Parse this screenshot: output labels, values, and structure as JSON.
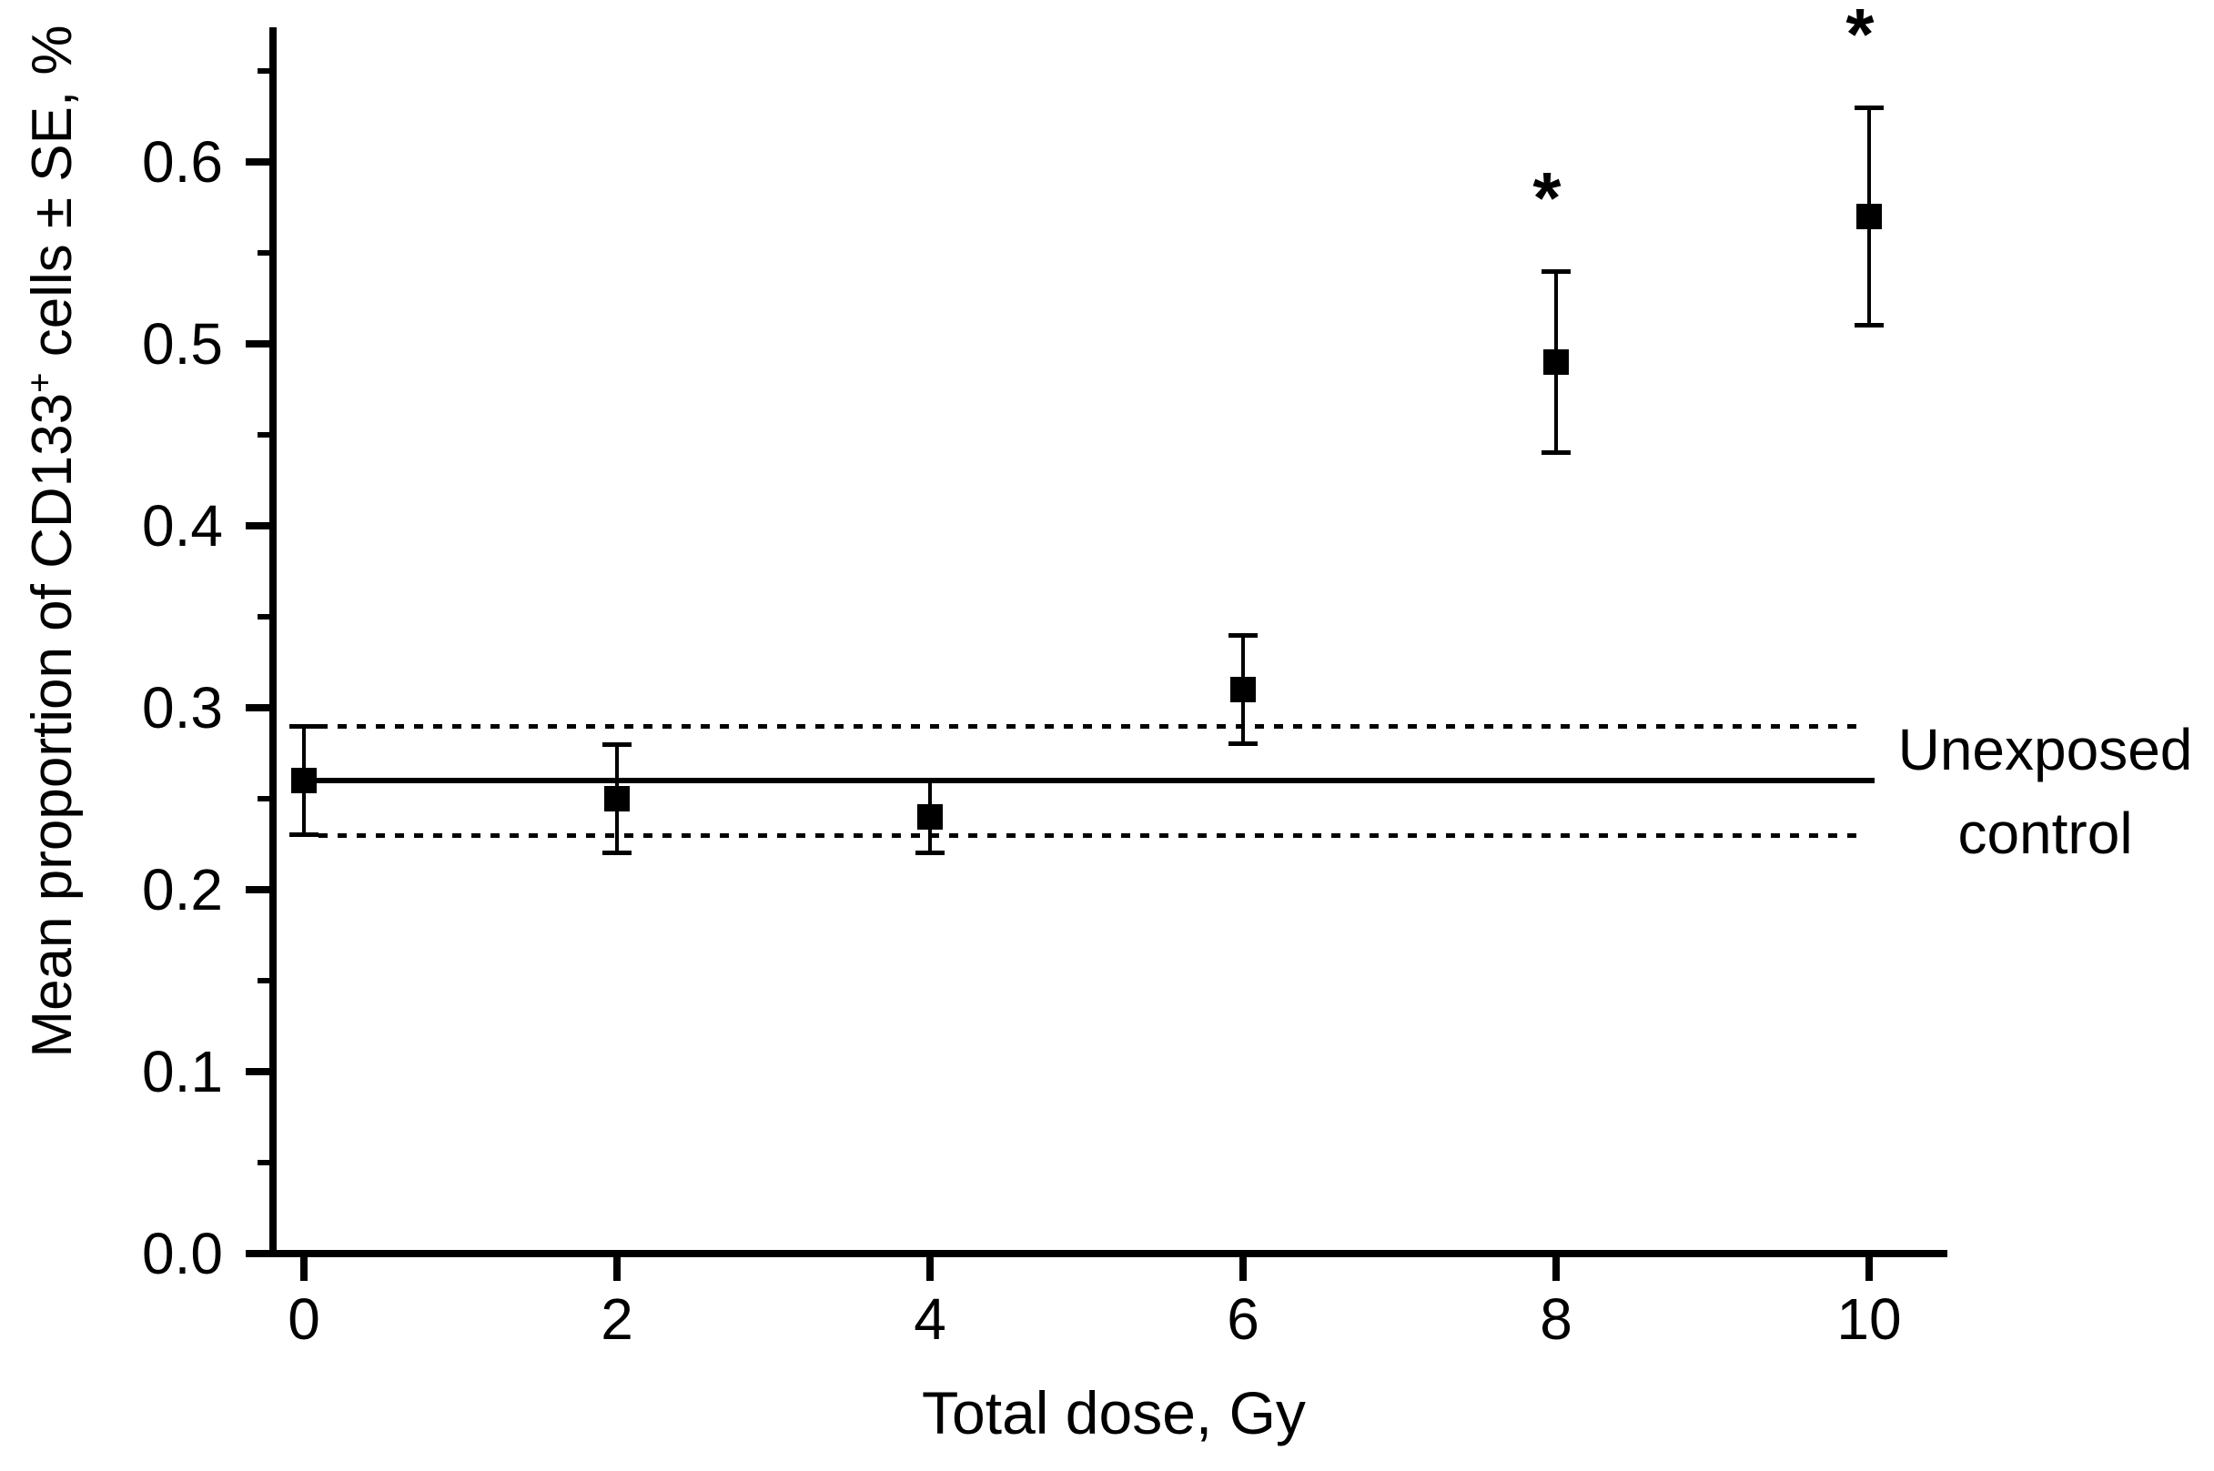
{
  "figure": {
    "background": "#ffffff",
    "foreground": "#000000",
    "significance_marker": "*",
    "y_axis_title": {
      "prefix": "Mean proportion of CD133",
      "superscript": "+",
      "suffix": " cells ± SE, %"
    },
    "x_axis_title": "Total dose, Gy",
    "control_label": {
      "line1": "Unexposed",
      "line2": "control"
    }
  },
  "chart_data": {
    "type": "scatter",
    "title": "",
    "xlabel": "Total dose, Gy",
    "ylabel": "Mean proportion of CD133+ cells ± SE, %",
    "marker": "filled-square",
    "marker_color": "#000000",
    "grid": false,
    "x": [
      0,
      2,
      4,
      6,
      8,
      10
    ],
    "y": [
      0.26,
      0.25,
      0.24,
      0.31,
      0.49,
      0.57
    ],
    "y_err": [
      0.03,
      0.03,
      0.02,
      0.03,
      0.05,
      0.06
    ],
    "significant": [
      false,
      false,
      false,
      false,
      true,
      true
    ],
    "x_tick_labels": [
      "0",
      "2",
      "4",
      "6",
      "8",
      "10"
    ],
    "x_ticks": [
      0,
      2,
      4,
      6,
      8,
      10
    ],
    "y_tick_labels": [
      "0.0",
      "0.1",
      "0.2",
      "0.3",
      "0.4",
      "0.5",
      "0.6"
    ],
    "y_ticks": [
      0.0,
      0.1,
      0.2,
      0.3,
      0.4,
      0.5,
      0.6
    ],
    "y_minor_ticks": [
      0.05,
      0.15,
      0.25,
      0.35,
      0.45,
      0.55,
      0.65
    ],
    "xlim": [
      0,
      10.5
    ],
    "ylim": [
      0,
      0.674
    ],
    "control_band": {
      "mean": 0.26,
      "upper": 0.29,
      "lower": 0.23,
      "label": "Unexposed control"
    }
  }
}
